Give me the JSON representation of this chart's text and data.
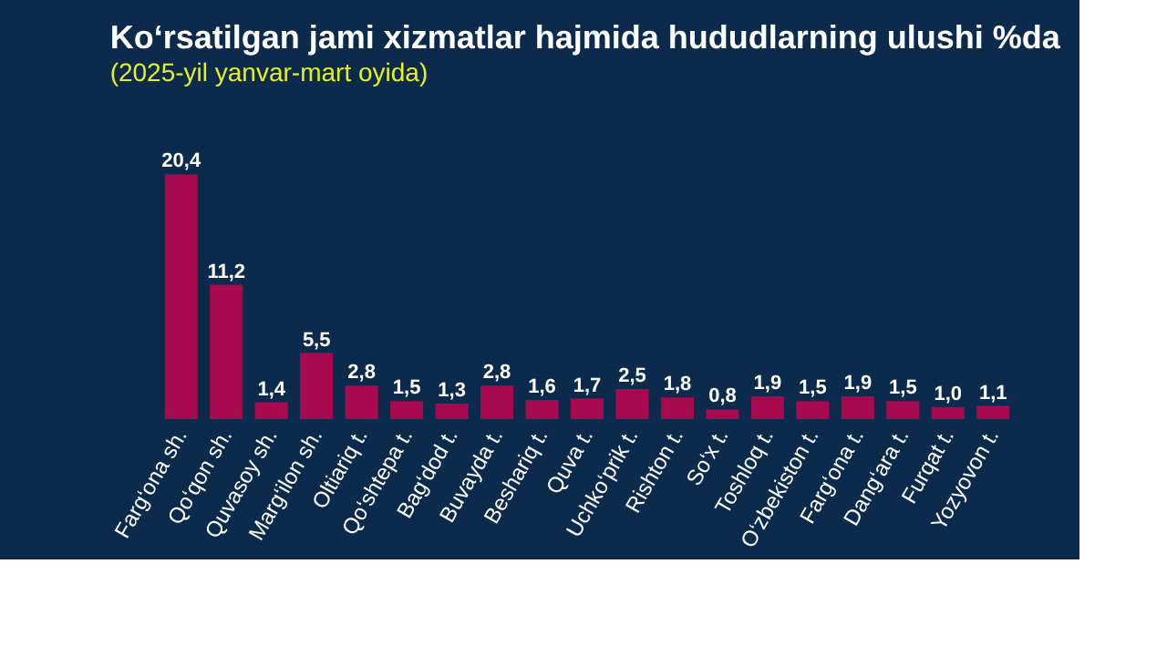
{
  "chart_data": {
    "type": "bar",
    "title": "Ko‘rsatilgan jami xizmatlar hajmida hududlarning ulushi %da",
    "subtitle": "(2025-yil yanvar-mart oyida)",
    "categories": [
      "Farg‘ona sh.",
      "Qo‘qon sh.",
      "Quvasoy sh.",
      "Marg‘ilon sh.",
      "Oltiariq t.",
      "Qo‘shtepa t.",
      "Bag‘dod t.",
      "Buvayda t.",
      "Beshariq t.",
      "Quva t.",
      "Uchko‘prik t.",
      "Rishton t.",
      "So‘x t.",
      "Toshloq t.",
      "O‘zbekiston t.",
      "Farg‘ona t.",
      "Dang‘ara t.",
      "Furqat t.",
      "Yozyovon t."
    ],
    "values": [
      20.4,
      11.2,
      1.4,
      5.5,
      2.8,
      1.5,
      1.3,
      2.8,
      1.6,
      1.7,
      2.5,
      1.8,
      0.8,
      1.9,
      1.5,
      1.9,
      1.5,
      1.0,
      1.1
    ],
    "value_labels": [
      "20,4",
      "11,2",
      "1,4",
      "5,5",
      "2,8",
      "1,5",
      "1,3",
      "2,8",
      "1,6",
      "1,7",
      "2,5",
      "1,8",
      "0,8",
      "1,9",
      "1,5",
      "1,9",
      "1,5",
      "1,0",
      "1,1"
    ],
    "color": "#a80a4f"
  }
}
